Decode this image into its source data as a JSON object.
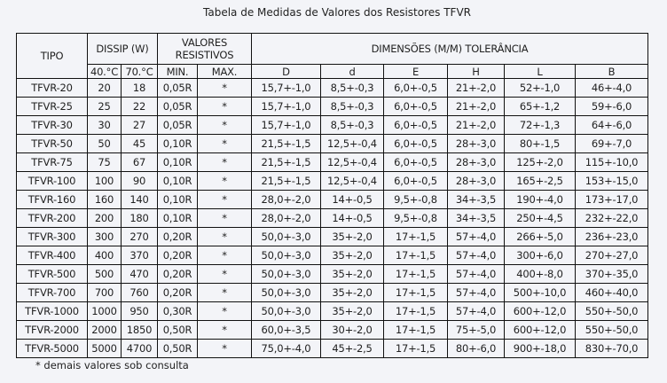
{
  "title": "Tabela de Medidas de Valores dos Resistores TFVR",
  "headers": {
    "tipo": "TIPO",
    "dissip": "DISSIP (W)",
    "valores": "VALORES RESISTIVOS",
    "dimensoes": "DIMENSÕES (M/M) TOLERÂNCIA",
    "sub": [
      "40.°C",
      "70.°C",
      "MIN.",
      "MAX.",
      "D",
      "d",
      "E",
      "H",
      "L",
      "B"
    ]
  },
  "rows": [
    [
      "TFVR-20",
      "20",
      "18",
      "0,05R",
      "*",
      "15,7+-1,0",
      "8,5+-0,3",
      "6,0+-0,5",
      "21+-2,0",
      "52+-1,0",
      "46+-4,0"
    ],
    [
      "TFVR-25",
      "25",
      "22",
      "0,05R",
      "*",
      "15,7+-1,0",
      "8,5+-0,3",
      "6,0+-0,5",
      "21+-2,0",
      "65+-1,2",
      "59+-6,0"
    ],
    [
      "TFVR-30",
      "30",
      "27",
      "0,05R",
      "*",
      "15,7+-1,0",
      "8,5+-0,3",
      "6,0+-0,5",
      "21+-2,0",
      "72+-1,3",
      "64+-6,0"
    ],
    [
      "TFVR-50",
      "50",
      "45",
      "0,10R",
      "*",
      "21,5+-1,5",
      "12,5+-0,4",
      "6,0+-0,5",
      "28+-3,0",
      "80+-1,5",
      "69+-7,0"
    ],
    [
      "TFVR-75",
      "75",
      "67",
      "0,10R",
      "*",
      "21,5+-1,5",
      "12,5+-0,4",
      "6,0+-0,5",
      "28+-3,0",
      "125+-2,0",
      "115+-10,0"
    ],
    [
      "TFVR-100",
      "100",
      "90",
      "0,10R",
      "*",
      "21,5+-1,5",
      "12,5+-0,4",
      "6,0+-0,5",
      "28+-3,0",
      "165+-2,5",
      "153+-15,0"
    ],
    [
      "TFVR-160",
      "160",
      "140",
      "0,10R",
      "*",
      "28,0+-2,0",
      "14+-0,5",
      "9,5+-0,8",
      "34+-3,5",
      "190+-4,0",
      "173+-17,0"
    ],
    [
      "TFVR-200",
      "200",
      "180",
      "0,10R",
      "*",
      "28,0+-2,0",
      "14+-0,5",
      "9,5+-0,8",
      "34+-3,5",
      "250+-4,5",
      "232+-22,0"
    ],
    [
      "TFVR-300",
      "300",
      "270",
      "0,20R",
      "*",
      "50,0+-3,0",
      "35+-2,0",
      "17+-1,5",
      "57+-4,0",
      "266+-5,0",
      "236+-23,0"
    ],
    [
      "TFVR-400",
      "400",
      "370",
      "0,20R",
      "*",
      "50,0+-3,0",
      "35+-2,0",
      "17+-1,5",
      "57+-4,0",
      "300+-6,0",
      "270+-27,0"
    ],
    [
      "TFVR-500",
      "500",
      "470",
      "0,20R",
      "*",
      "50,0+-3,0",
      "35+-2,0",
      "17+-1,5",
      "57+-4,0",
      "400+-8,0",
      "370+-35,0"
    ],
    [
      "TFVR-700",
      "700",
      "760",
      "0,20R",
      "*",
      "50,0+-3,0",
      "35+-2,0",
      "17+-1,5",
      "57+-4,0",
      "500+-10,0",
      "460+-40,0"
    ],
    [
      "TFVR-1000",
      "1000",
      "950",
      "0,30R",
      "*",
      "50,0+-3,0",
      "35+-2,0",
      "17+-1,5",
      "57+-4,0",
      "600+-12,0",
      "550+-50,0"
    ],
    [
      "TFVR-2000",
      "2000",
      "1850",
      "0,50R",
      "*",
      "60,0+-3,5",
      "30+-2,0",
      "17+-1,5",
      "75+-5,0",
      "600+-12,0",
      "550+-50,0"
    ],
    [
      "TFVR-5000",
      "5000",
      "4700",
      "0,50R",
      "*",
      "75,0+-4,0",
      "45+-2,5",
      "17+-1,5",
      "80+-6,0",
      "900+-18,0",
      "830+-70,0"
    ]
  ],
  "note": "* demais valores sob consulta"
}
